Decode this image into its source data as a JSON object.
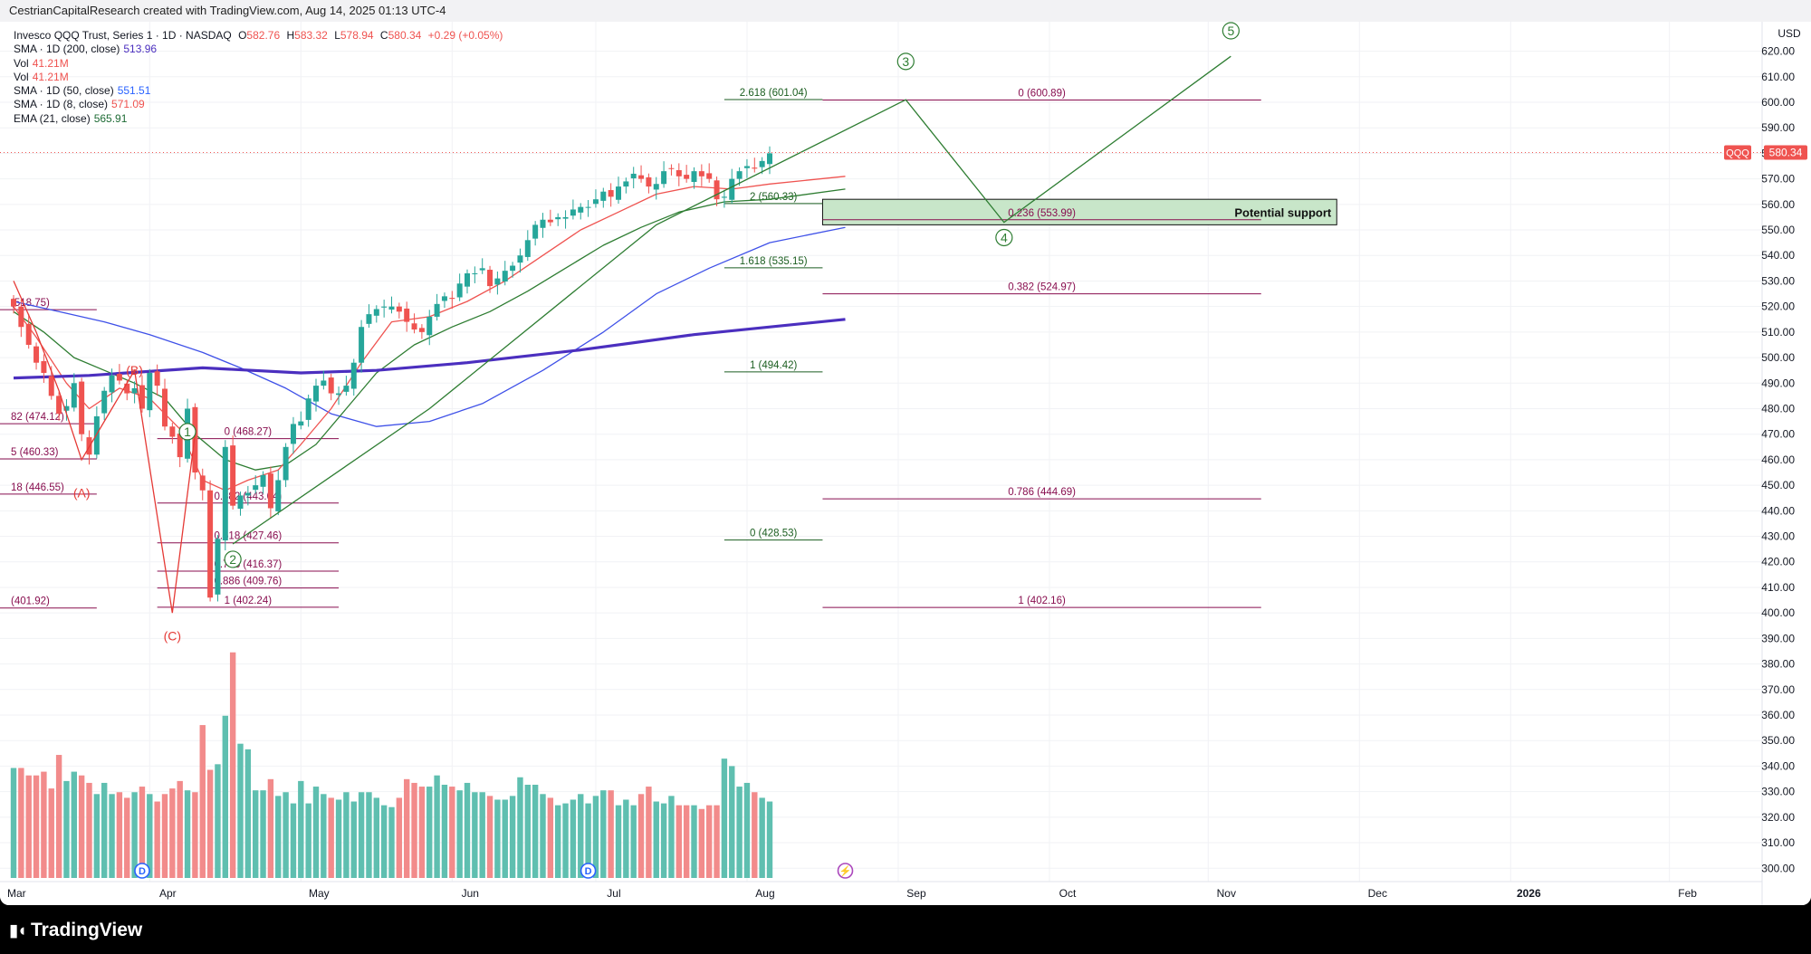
{
  "attribution": "CestrianCapitalResearch created with TradingView.com, Aug 14, 2025 01:13 UTC-4",
  "brand": "TradingView",
  "brand_logo_icon": "tradingview-logo-icon",
  "legend": {
    "title": "Invesco QQQ Trust, Series 1 · 1D · NASDAQ",
    "ohlc": {
      "O": "582.76",
      "H": "583.32",
      "L": "578.94",
      "C": "580.34",
      "chg": "+0.29 (+0.05%)"
    },
    "rows": [
      {
        "label": "SMA · 1D (200, close)",
        "value": "513.96",
        "color": "#4b2fbf"
      },
      {
        "label": "Vol",
        "value": "41.21M",
        "color": "#ef5350"
      },
      {
        "label": "Vol",
        "value": "41.21M",
        "color": "#ef5350"
      },
      {
        "label": "SMA · 1D (50, close)",
        "value": "551.51",
        "color": "#2962ff"
      },
      {
        "label": "SMA · 1D (8, close)",
        "value": "571.09",
        "color": "#ef5350"
      },
      {
        "label": "EMA (21, close)",
        "value": "565.91",
        "color": "#1e6b35"
      }
    ]
  },
  "colors": {
    "up": "#26a69a",
    "down": "#ef5350",
    "up_vol": "#5fbfb0",
    "down_vol": "#f28b8b",
    "sma200": "#4b2fbf",
    "sma50": "#3f51e8",
    "sma8": "#ef5350",
    "ema21": "#2e7d32",
    "fib_magenta": "#880e4f",
    "fib_green": "#1b5e20",
    "wave_red": "#e53935",
    "wave_green": "#2e7d32",
    "support_fill": "#c8e6c9",
    "price_tag": "#ef5350"
  },
  "chart_data": {
    "type": "candlestick",
    "symbol": "QQQ",
    "currency": "USD",
    "last_price": 580.34,
    "y_range": [
      293,
      628
    ],
    "y_ticks": [
      300,
      310,
      320,
      330,
      340,
      350,
      360,
      370,
      380,
      390,
      400,
      410,
      420,
      430,
      440,
      450,
      460,
      470,
      480,
      490,
      500,
      510,
      520,
      530,
      540,
      550,
      560,
      570,
      580,
      590,
      600,
      610,
      620
    ],
    "x_axis_labels": [
      {
        "label": "Mar",
        "bar": -2,
        "bold": false
      },
      {
        "label": "Apr",
        "bar": 18,
        "bold": false
      },
      {
        "label": "May",
        "bar": 38,
        "bold": false
      },
      {
        "label": "Jun",
        "bar": 58,
        "bold": false
      },
      {
        "label": "Jul",
        "bar": 77,
        "bold": false
      },
      {
        "label": "Aug",
        "bar": 97,
        "bold": false
      },
      {
        "label": "Sep",
        "bar": 117,
        "bold": false
      },
      {
        "label": "Oct",
        "bar": 137,
        "bold": false
      },
      {
        "label": "Nov",
        "bar": 158,
        "bold": false
      },
      {
        "label": "Dec",
        "bar": 178,
        "bold": false
      },
      {
        "label": "2026",
        "bar": 198,
        "bold": true
      },
      {
        "label": "Feb",
        "bar": 219,
        "bold": false
      }
    ],
    "closes": [
      520,
      512,
      505,
      498,
      494,
      485,
      478,
      481,
      490,
      470,
      462,
      477,
      487,
      493,
      491,
      486,
      488,
      480,
      494,
      489,
      473,
      469,
      461,
      480,
      455,
      448,
      406,
      429,
      465,
      442,
      446,
      447,
      450,
      454,
      441,
      452,
      465,
      474,
      475,
      484,
      489,
      491,
      486,
      486,
      489,
      498,
      512,
      517,
      519,
      520,
      520,
      518,
      514,
      511,
      510,
      516,
      521,
      524,
      523,
      529,
      533,
      533,
      535,
      528,
      531,
      534,
      536,
      540,
      546,
      552,
      554,
      553,
      555,
      555,
      558,
      559,
      559,
      562,
      565,
      563,
      567,
      569,
      572,
      570,
      567,
      568,
      573,
      574,
      571,
      570,
      573,
      571,
      570,
      562,
      563,
      570,
      573,
      575,
      574,
      577,
      580
    ],
    "volumes_M": [
      59,
      59,
      55,
      55,
      57,
      48,
      66,
      52,
      57,
      55,
      51,
      45,
      51,
      45,
      46,
      43,
      46,
      49,
      45,
      41,
      45,
      48,
      52,
      47,
      46,
      82,
      58,
      61,
      87,
      121,
      72,
      69,
      47,
      47,
      53,
      44,
      46,
      40,
      52,
      40,
      49,
      45,
      43,
      42,
      46,
      41,
      46,
      46,
      43,
      39,
      38,
      43,
      53,
      51,
      49,
      49,
      55,
      50,
      49,
      47,
      51,
      46,
      46,
      44,
      42,
      42,
      44,
      54,
      50,
      50,
      45,
      43,
      39,
      40,
      42,
      45,
      40,
      44,
      47,
      47,
      39,
      42,
      39,
      45,
      49,
      41,
      40,
      44,
      39,
      39,
      39,
      37,
      39,
      39,
      64,
      60,
      49,
      51,
      46,
      43,
      41
    ],
    "moving_averages": {
      "sma200": [
        [
          0,
          492
        ],
        [
          10,
          493
        ],
        [
          25,
          496
        ],
        [
          38,
          494
        ],
        [
          48,
          495
        ],
        [
          60,
          498
        ],
        [
          75,
          503
        ],
        [
          90,
          509
        ],
        [
          110,
          515
        ]
      ],
      "sma50": [
        [
          0,
          522
        ],
        [
          6,
          518
        ],
        [
          12,
          514
        ],
        [
          18,
          509
        ],
        [
          25,
          502
        ],
        [
          30,
          496
        ],
        [
          36,
          488
        ],
        [
          42,
          478
        ],
        [
          48,
          473
        ],
        [
          55,
          475
        ],
        [
          62,
          482
        ],
        [
          70,
          495
        ],
        [
          78,
          510
        ],
        [
          85,
          525
        ],
        [
          92,
          535
        ],
        [
          100,
          545
        ],
        [
          110,
          551
        ]
      ],
      "sma8": [
        [
          0,
          520
        ],
        [
          3,
          508
        ],
        [
          7,
          490
        ],
        [
          10,
          480
        ],
        [
          14,
          488
        ],
        [
          18,
          484
        ],
        [
          22,
          472
        ],
        [
          25,
          452
        ],
        [
          28,
          448
        ],
        [
          31,
          452
        ],
        [
          35,
          456
        ],
        [
          38,
          466
        ],
        [
          42,
          480
        ],
        [
          46,
          498
        ],
        [
          50,
          514
        ],
        [
          55,
          516
        ],
        [
          60,
          522
        ],
        [
          65,
          530
        ],
        [
          70,
          540
        ],
        [
          75,
          550
        ],
        [
          80,
          557
        ],
        [
          85,
          564
        ],
        [
          90,
          567
        ],
        [
          95,
          566
        ],
        [
          100,
          568
        ],
        [
          110,
          571
        ]
      ],
      "ema21": [
        [
          0,
          518
        ],
        [
          4,
          510
        ],
        [
          8,
          500
        ],
        [
          12,
          495
        ],
        [
          16,
          490
        ],
        [
          20,
          484
        ],
        [
          24,
          470
        ],
        [
          28,
          460
        ],
        [
          32,
          456
        ],
        [
          36,
          458
        ],
        [
          40,
          466
        ],
        [
          44,
          480
        ],
        [
          48,
          494
        ],
        [
          53,
          505
        ],
        [
          58,
          512
        ],
        [
          63,
          518
        ],
        [
          68,
          526
        ],
        [
          73,
          535
        ],
        [
          78,
          544
        ],
        [
          83,
          551
        ],
        [
          88,
          557
        ],
        [
          94,
          561
        ],
        [
          100,
          562
        ],
        [
          110,
          566
        ]
      ]
    },
    "wave_labels": [
      {
        "label": "(A)",
        "bar": 9,
        "price": 447,
        "color": "wave_red",
        "circled": false
      },
      {
        "label": "(B)",
        "bar": 16,
        "price": 495,
        "color": "wave_red",
        "circled": false
      },
      {
        "label": "(C)",
        "bar": 21,
        "price": 391,
        "color": "wave_red",
        "circled": false
      },
      {
        "label": "1",
        "bar": 23,
        "price": 471,
        "color": "wave_green",
        "circled": true
      },
      {
        "label": "2",
        "bar": 29,
        "price": 421,
        "color": "wave_green",
        "circled": true
      },
      {
        "label": "3",
        "bar": 118,
        "price": 616,
        "color": "wave_green",
        "circled": true
      },
      {
        "label": "4",
        "bar": 131,
        "price": 547,
        "color": "wave_green",
        "circled": true
      },
      {
        "label": "5",
        "bar": 161,
        "price": 628,
        "color": "wave_green",
        "circled": true
      }
    ],
    "wave_paths": [
      {
        "color": "wave_red",
        "points": [
          [
            0,
            530
          ],
          [
            3,
            510
          ],
          [
            6,
            487
          ],
          [
            9,
            460
          ],
          [
            16,
            495
          ],
          [
            21,
            400
          ],
          [
            24,
            470
          ]
        ]
      },
      {
        "color": "wave_green",
        "points": [
          [
            29,
            427
          ],
          [
            55,
            480
          ],
          [
            85,
            552
          ],
          [
            118,
            601
          ],
          [
            131,
            553
          ],
          [
            161,
            618
          ]
        ]
      }
    ],
    "fib_levels": [
      {
        "label": "(518.75)",
        "price": 518.75,
        "from": -2,
        "to": 11,
        "color": "fib_magenta"
      },
      {
        "label": "82 (474.12)",
        "price": 474.12,
        "from": -2,
        "to": 11,
        "color": "fib_magenta"
      },
      {
        "label": "5 (460.33)",
        "price": 460.33,
        "from": -2,
        "to": 11,
        "color": "fib_magenta"
      },
      {
        "label": "18 (446.55)",
        "price": 446.55,
        "from": -2,
        "to": 11,
        "color": "fib_magenta"
      },
      {
        "label": "(401.92)",
        "price": 401.92,
        "from": -2,
        "to": 11,
        "color": "fib_magenta"
      },
      {
        "label": "0 (468.27)",
        "price": 468.27,
        "from": 19,
        "to": 43,
        "color": "fib_magenta"
      },
      {
        "label": "0.382 (443.04)",
        "price": 443.04,
        "from": 19,
        "to": 43,
        "color": "fib_magenta"
      },
      {
        "label": "0.618 (427.46)",
        "price": 427.46,
        "from": 19,
        "to": 43,
        "color": "fib_magenta"
      },
      {
        "label": "0.786 (416.37)",
        "price": 416.37,
        "from": 19,
        "to": 43,
        "color": "fib_magenta"
      },
      {
        "label": "0.886 (409.76)",
        "price": 409.76,
        "from": 19,
        "to": 43,
        "color": "fib_magenta"
      },
      {
        "label": "1 (402.24)",
        "price": 402.24,
        "from": 19,
        "to": 43,
        "color": "fib_magenta"
      },
      {
        "label": "2.618 (601.04)",
        "price": 601.04,
        "from": 94,
        "to": 107,
        "color": "fib_green"
      },
      {
        "label": "2 (560.33)",
        "price": 560.33,
        "from": 94,
        "to": 107,
        "color": "fib_green"
      },
      {
        "label": "1.618 (535.15)",
        "price": 535.15,
        "from": 94,
        "to": 107,
        "color": "fib_green"
      },
      {
        "label": "1 (494.42)",
        "price": 494.42,
        "from": 94,
        "to": 107,
        "color": "fib_green"
      },
      {
        "label": "0 (428.53)",
        "price": 428.53,
        "from": 94,
        "to": 107,
        "color": "fib_green"
      },
      {
        "label": "0 (600.89)",
        "price": 600.89,
        "from": 107,
        "to": 165,
        "color": "fib_magenta"
      },
      {
        "label": "0.236 (553.99)",
        "price": 553.99,
        "from": 107,
        "to": 165,
        "color": "fib_magenta"
      },
      {
        "label": "0.382 (524.97)",
        "price": 524.97,
        "from": 107,
        "to": 165,
        "color": "fib_magenta"
      },
      {
        "label": "0.786 (444.69)",
        "price": 444.69,
        "from": 107,
        "to": 165,
        "color": "fib_magenta"
      },
      {
        "label": "1 (402.16)",
        "price": 402.16,
        "from": 107,
        "to": 165,
        "color": "fib_magenta"
      }
    ],
    "support_zone": {
      "label": "Potential support",
      "low": 552,
      "high": 562,
      "from": 107,
      "to": 175
    },
    "event_markers": [
      {
        "label": "D",
        "bar": 17,
        "icon": "dividend-icon"
      },
      {
        "label": "D",
        "bar": 76,
        "icon": "dividend-icon"
      },
      {
        "label": "⚡",
        "bar": 110,
        "icon": "earnings-flash-icon"
      }
    ]
  }
}
